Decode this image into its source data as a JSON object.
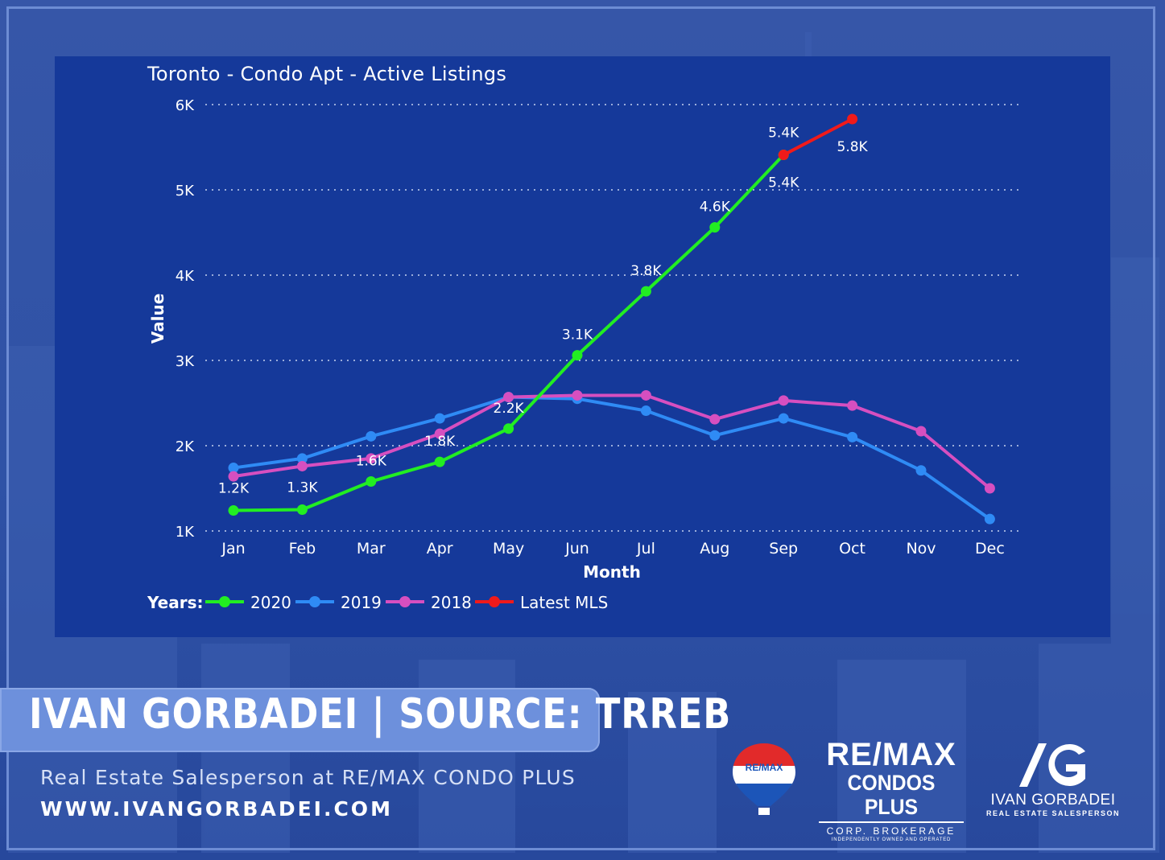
{
  "chart_data": {
    "type": "line",
    "title": "Toronto - Condo Apt - Active Listings",
    "xlabel": "Month",
    "ylabel": "Value",
    "categories": [
      "Jan",
      "Feb",
      "Mar",
      "Apr",
      "May",
      "Jun",
      "Jul",
      "Aug",
      "Sep",
      "Oct",
      "Nov",
      "Dec"
    ],
    "y_ticks": [
      {
        "value": 1000,
        "label": "1K"
      },
      {
        "value": 2000,
        "label": "2K"
      },
      {
        "value": 3000,
        "label": "3K"
      },
      {
        "value": 4000,
        "label": "4K"
      },
      {
        "value": 5000,
        "label": "5K"
      },
      {
        "value": 6000,
        "label": "6K"
      }
    ],
    "ylim": [
      1000,
      6000
    ],
    "grid": true,
    "legend_title": "Years:",
    "legend_position": "bottom-left",
    "series": [
      {
        "name": "2020",
        "color": "#22ee22",
        "values": [
          1240,
          1250,
          1580,
          1810,
          2200,
          3060,
          3810,
          4560,
          5410,
          null,
          null,
          null
        ],
        "labels": [
          "1.2K",
          "1.3K",
          "1.6K",
          "1.8K",
          "2.2K",
          "3.1K",
          "3.8K",
          "4.6K",
          "5.4K",
          null,
          null,
          null
        ]
      },
      {
        "name": "2019",
        "color": "#2f8bf5",
        "values": [
          1740,
          1850,
          2110,
          2320,
          2570,
          2550,
          2410,
          2120,
          2320,
          2100,
          1710,
          1140
        ],
        "labels": [
          null,
          null,
          null,
          null,
          null,
          null,
          null,
          null,
          null,
          null,
          null,
          null
        ]
      },
      {
        "name": "2018",
        "color": "#d64fc0",
        "values": [
          1640,
          1760,
          1850,
          2140,
          2570,
          2590,
          2590,
          2310,
          2530,
          2470,
          2170,
          1500
        ],
        "labels": [
          null,
          null,
          null,
          null,
          null,
          null,
          null,
          null,
          null,
          null,
          null,
          null
        ]
      },
      {
        "name": "Latest MLS",
        "color": "#f01a1a",
        "values": [
          null,
          null,
          null,
          null,
          null,
          null,
          null,
          null,
          5410,
          5830,
          null,
          null
        ],
        "labels": [
          null,
          null,
          null,
          null,
          null,
          null,
          null,
          null,
          "5.4K",
          "5.8K",
          null,
          null
        ]
      }
    ]
  },
  "banner": {
    "name_source": "IVAN GORBADEI  |  SOURCE: TRREB",
    "subtitle": "Real Estate Salesperson at RE/MAX CONDO PLUS",
    "website": "WWW.IVANGORBADEI.COM"
  },
  "remax": {
    "line1": "RE/MAX",
    "line2": "CONDOS PLUS",
    "line3": "CORP. BROKERAGE",
    "line4": "INDEPENDENTLY OWNED AND OPERATED",
    "balloon_text": "RE/MAX"
  },
  "agent_logo": {
    "monogram": "/G",
    "name": "IVAN GORBADEI",
    "role": "REAL ESTATE SALESPERSON"
  },
  "colors": {
    "panel": "#15399a",
    "background": "#2f52a6",
    "banner": "#6d90dc"
  }
}
